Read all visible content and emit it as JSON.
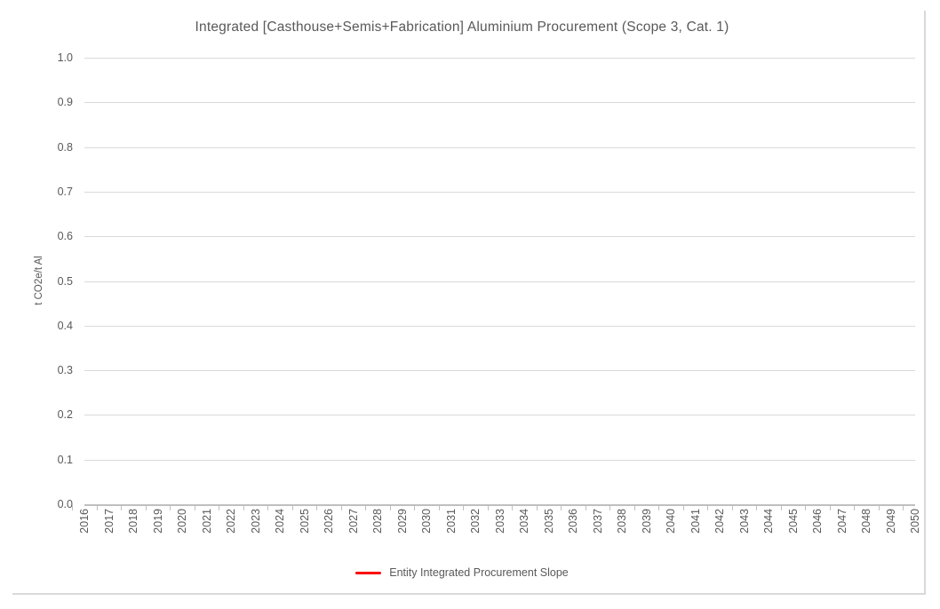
{
  "chart": {
    "title": "Integrated [Casthouse+Semis+Fabrication] Aluminium Procurement (Scope 3, Cat. 1)",
    "y_axis_title": "t CO2e/t Al",
    "legend": {
      "items": [
        {
          "label": "Entity Integrated Procurement Slope",
          "marker": "line",
          "color": "#ff0000"
        }
      ]
    }
  },
  "chart_data": {
    "type": "line",
    "title": "Integrated [Casthouse+Semis+Fabrication] Aluminium Procurement (Scope 3, Cat. 1)",
    "xlabel": "",
    "ylabel": "t CO2e/t Al",
    "x": [
      "2016",
      "2017",
      "2018",
      "2019",
      "2020",
      "2021",
      "2022",
      "2023",
      "2024",
      "2025",
      "2026",
      "2027",
      "2028",
      "2029",
      "2030",
      "2031",
      "2032",
      "2033",
      "2034",
      "2035",
      "2036",
      "2037",
      "2038",
      "2039",
      "2040",
      "2041",
      "2042",
      "2043",
      "2044",
      "2045",
      "2046",
      "2047",
      "2048",
      "2049",
      "2050"
    ],
    "ylim": [
      0.0,
      1.0
    ],
    "ytick_step": 0.1,
    "ytick_decimals": 1,
    "grid": "horizontal-major-only",
    "legend_position": "bottom-center",
    "x_labels_rotation_deg": -90,
    "series": [
      {
        "name": "Entity Integrated Procurement Slope",
        "color": "#ff0000",
        "values": []
      }
    ]
  },
  "colors": {
    "background": "#ffffff",
    "text": "#595959",
    "gridline": "#d9d9d9",
    "axis_line": "#bfbfbf",
    "chart_border": "#d9d9d9",
    "series_red": "#ff0000"
  }
}
